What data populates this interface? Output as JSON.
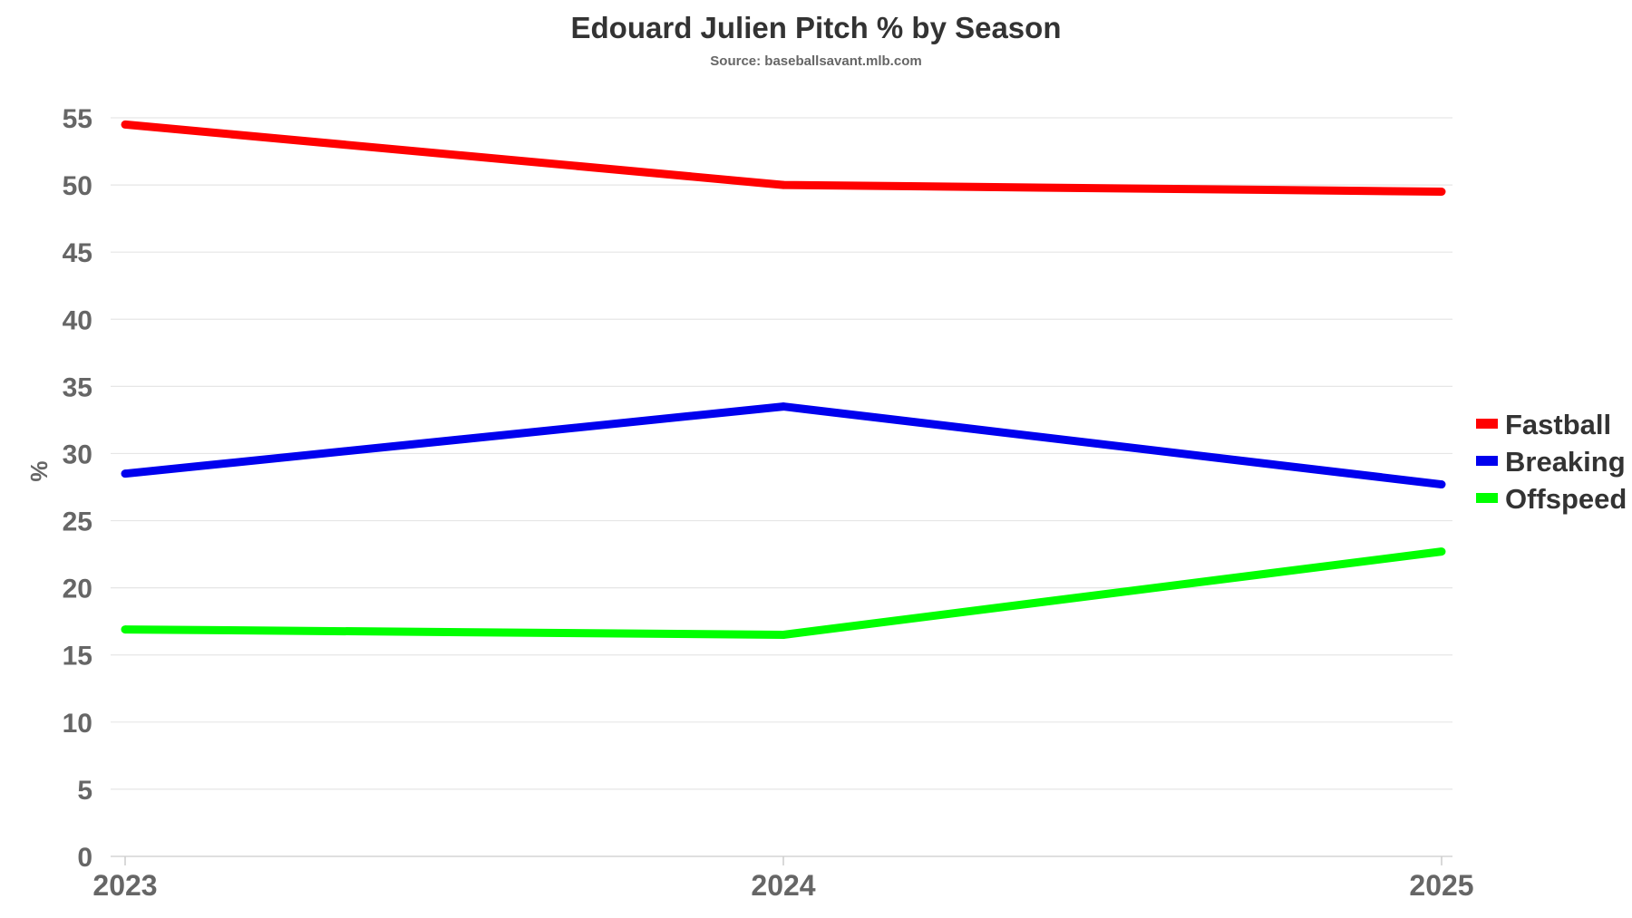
{
  "chart_data": {
    "type": "line",
    "title": "Edouard Julien Pitch % by Season",
    "subtitle": "Source: baseballsavant.mlb.com",
    "xlabel": "",
    "ylabel": "%",
    "x": [
      "2023",
      "2024",
      "2025"
    ],
    "ylim": [
      0,
      55
    ],
    "yticks": [
      0,
      5,
      10,
      15,
      20,
      25,
      30,
      35,
      40,
      45,
      50,
      55
    ],
    "grid": true,
    "legend_position": "right",
    "series": [
      {
        "name": "Fastball",
        "color": "#ff0000",
        "values": [
          54.5,
          50.0,
          49.5
        ]
      },
      {
        "name": "Breaking",
        "color": "#0000ee",
        "values": [
          28.5,
          33.5,
          27.7
        ]
      },
      {
        "name": "Offspeed",
        "color": "#00ff00",
        "values": [
          16.9,
          16.5,
          22.7
        ]
      }
    ]
  }
}
